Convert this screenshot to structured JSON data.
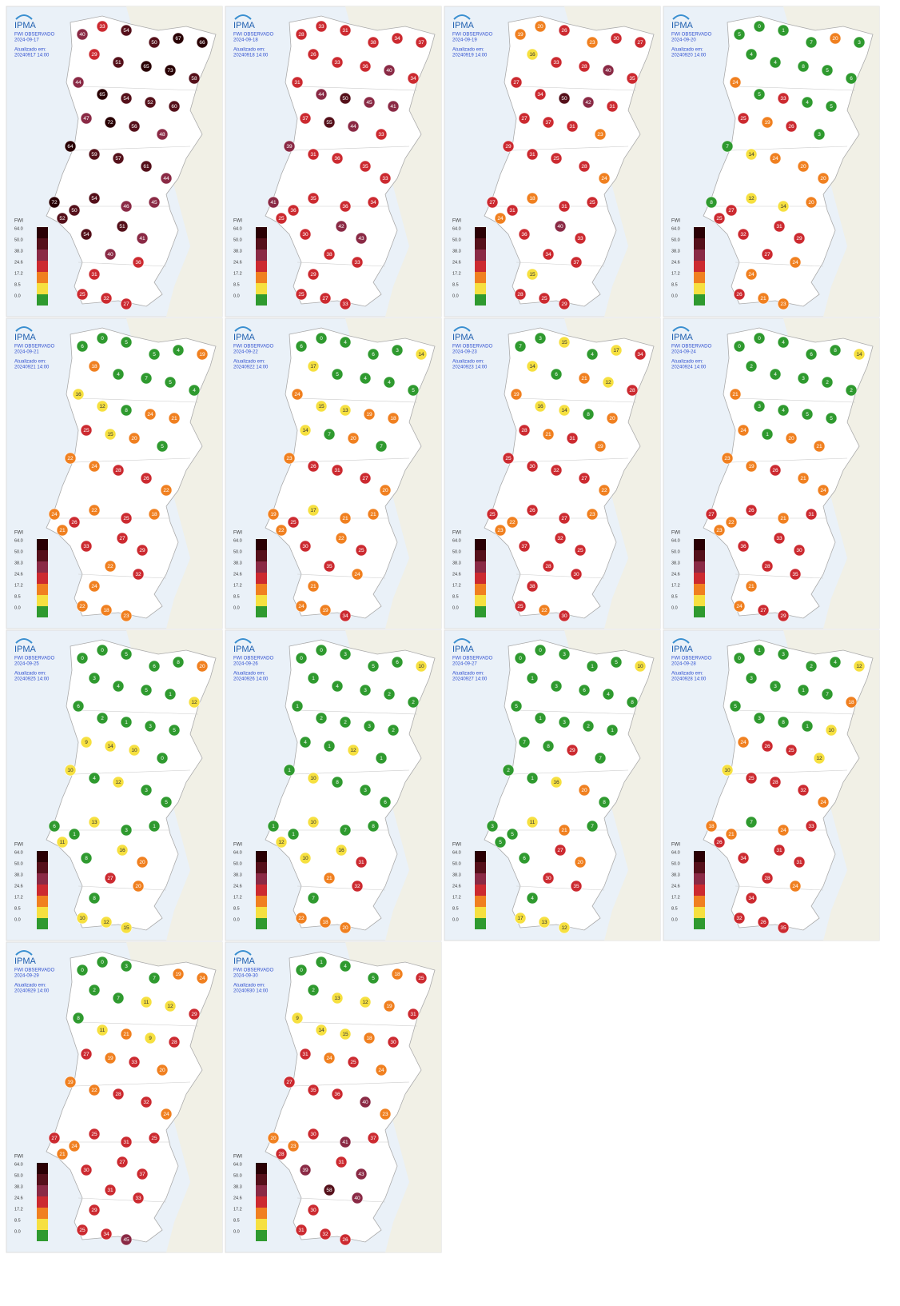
{
  "logo": "IPMA",
  "product": "FWI OBSERVADO",
  "updated_label": "Atualizado em:",
  "legend": {
    "title": "FWI",
    "classes": [
      {
        "value": 64,
        "label": "64.0",
        "color": "#2a0004"
      },
      {
        "value": 50,
        "label": "50.0",
        "color": "#55101a"
      },
      {
        "value": 38.3,
        "label": "38.3",
        "color": "#8a2a45"
      },
      {
        "value": 24.6,
        "label": "24.6",
        "color": "#cc2a30"
      },
      {
        "value": 17.2,
        "label": "17.2",
        "color": "#f08020"
      },
      {
        "value": 8.5,
        "label": "8.5",
        "color": "#f6e040"
      },
      {
        "value": 0,
        "label": "0.0",
        "color": "#2f9a2f"
      }
    ]
  },
  "maps": [
    {
      "date": "2024-09-17",
      "updated": "20240917 14:00",
      "values": [
        40,
        33,
        54,
        50,
        67,
        66,
        29,
        51,
        65,
        73,
        58,
        44,
        65,
        54,
        52,
        60,
        47,
        72,
        56,
        48,
        64,
        59,
        57,
        61,
        44,
        72,
        50,
        52,
        54,
        46,
        45,
        54,
        51,
        41,
        40,
        36,
        31,
        25,
        32,
        27
      ]
    },
    {
      "date": "2024-09-18",
      "updated": "20240918 14:00",
      "values": [
        28,
        33,
        31,
        38,
        34,
        37,
        26,
        33,
        36,
        40,
        34,
        31,
        44,
        50,
        45,
        41,
        37,
        55,
        44,
        33,
        39,
        31,
        36,
        35,
        33,
        41,
        36,
        25,
        35,
        36,
        34,
        30,
        42,
        43,
        38,
        33,
        29,
        25,
        27,
        33
      ]
    },
    {
      "date": "2024-09-19",
      "updated": "20240919 14:00",
      "values": [
        19,
        20,
        26,
        23,
        30,
        27,
        16,
        33,
        28,
        40,
        35,
        27,
        34,
        50,
        42,
        31,
        27,
        37,
        31,
        23,
        29,
        31,
        25,
        28,
        24,
        27,
        31,
        24,
        18,
        31,
        25,
        36,
        40,
        33,
        34,
        37,
        15,
        28,
        25,
        29
      ]
    },
    {
      "date": "2024-09-20",
      "updated": "20240920 14:00",
      "values": [
        5,
        0,
        1,
        7,
        20,
        3,
        4,
        4,
        8,
        5,
        6,
        24,
        5,
        33,
        4,
        5,
        25,
        19,
        26,
        3,
        7,
        14,
        24,
        20,
        20,
        8,
        27,
        25,
        12,
        14,
        20,
        32,
        31,
        29,
        27,
        24,
        24,
        26,
        21,
        23
      ]
    },
    {
      "date": "2024-09-21",
      "updated": "20240921 14:00",
      "values": [
        6,
        0,
        5,
        5,
        4,
        19,
        18,
        4,
        7,
        5,
        4,
        16,
        12,
        8,
        24,
        21,
        25,
        15,
        20,
        5,
        22,
        24,
        28,
        26,
        22,
        24,
        26,
        21,
        22,
        25,
        18,
        33,
        27,
        29,
        22,
        32,
        24,
        22,
        18,
        23
      ]
    },
    {
      "date": "2024-09-22",
      "updated": "20240922 14:00",
      "values": [
        6,
        0,
        4,
        6,
        3,
        14,
        17,
        5,
        4,
        4,
        5,
        24,
        15,
        13,
        19,
        18,
        14,
        7,
        20,
        7,
        23,
        26,
        31,
        27,
        20,
        19,
        25,
        22,
        17,
        21,
        21,
        30,
        22,
        25,
        35,
        24,
        21,
        24,
        19,
        34
      ]
    },
    {
      "date": "2024-09-23",
      "updated": "20240923 14:00",
      "values": [
        7,
        3,
        15,
        4,
        17,
        34,
        14,
        6,
        21,
        12,
        28,
        19,
        16,
        14,
        8,
        20,
        28,
        21,
        31,
        19,
        25,
        30,
        32,
        27,
        22,
        25,
        22,
        23,
        26,
        27,
        23,
        37,
        32,
        25,
        28,
        30,
        38,
        25,
        22,
        30
      ]
    },
    {
      "date": "2024-09-24",
      "updated": "20240924 14:00",
      "values": [
        0,
        0,
        4,
        6,
        8,
        14,
        2,
        4,
        3,
        2,
        2,
        21,
        3,
        4,
        5,
        5,
        24,
        1,
        20,
        21,
        23,
        19,
        26,
        21,
        24,
        27,
        22,
        23,
        26,
        21,
        31,
        36,
        33,
        30,
        28,
        35,
        21,
        24,
        27,
        29
      ]
    },
    {
      "date": "2024-09-25",
      "updated": "20240925 14:00",
      "values": [
        0,
        0,
        5,
        6,
        8,
        20,
        3,
        4,
        5,
        1,
        12,
        6,
        2,
        1,
        3,
        5,
        9,
        14,
        10,
        0,
        10,
        4,
        12,
        3,
        5,
        6,
        1,
        11,
        13,
        3,
        1,
        8,
        16,
        20,
        27,
        20,
        8,
        10,
        12,
        15
      ]
    },
    {
      "date": "2024-09-26",
      "updated": "20240926 14:00",
      "values": [
        0,
        0,
        3,
        5,
        6,
        10,
        1,
        4,
        3,
        2,
        2,
        1,
        2,
        2,
        3,
        2,
        4,
        1,
        12,
        1,
        1,
        10,
        8,
        3,
        6,
        1,
        1,
        12,
        10,
        7,
        8,
        10,
        16,
        31,
        21,
        32,
        7,
        22,
        18,
        20
      ]
    },
    {
      "date": "2024-09-27",
      "updated": "20240927 14:00",
      "values": [
        0,
        0,
        3,
        1,
        5,
        10,
        1,
        3,
        6,
        4,
        8,
        5,
        1,
        3,
        2,
        1,
        7,
        8,
        29,
        7,
        2,
        1,
        16,
        20,
        8,
        3,
        5,
        5,
        11,
        21,
        7,
        6,
        27,
        20,
        30,
        35,
        4,
        17,
        13,
        12
      ]
    },
    {
      "date": "2024-09-28",
      "updated": "20240928 14:00",
      "values": [
        0,
        1,
        3,
        2,
        4,
        12,
        3,
        3,
        1,
        7,
        18,
        5,
        3,
        8,
        1,
        10,
        24,
        26,
        25,
        12,
        10,
        25,
        28,
        32,
        24,
        18,
        21,
        26,
        7,
        24,
        33,
        34,
        31,
        31,
        28,
        24,
        34,
        32,
        26,
        35
      ]
    },
    {
      "date": "2024-09-29",
      "updated": "20240929 14:00",
      "values": [
        0,
        0,
        3,
        7,
        19,
        24,
        2,
        7,
        11,
        12,
        29,
        8,
        11,
        21,
        9,
        28,
        27,
        19,
        33,
        20,
        19,
        22,
        28,
        32,
        24,
        27,
        24,
        21,
        25,
        31,
        25,
        30,
        27,
        37,
        31,
        33,
        29,
        25,
        34,
        45
      ]
    },
    {
      "date": "2024-09-30",
      "updated": "20240930 14:00",
      "values": [
        0,
        1,
        4,
        5,
        18,
        25,
        2,
        13,
        12,
        19,
        31,
        9,
        14,
        15,
        18,
        30,
        31,
        24,
        25,
        24,
        27,
        35,
        36,
        40,
        23,
        20,
        23,
        28,
        30,
        41,
        37,
        39,
        31,
        43,
        58,
        40,
        30,
        31,
        32,
        26
      ]
    }
  ]
}
